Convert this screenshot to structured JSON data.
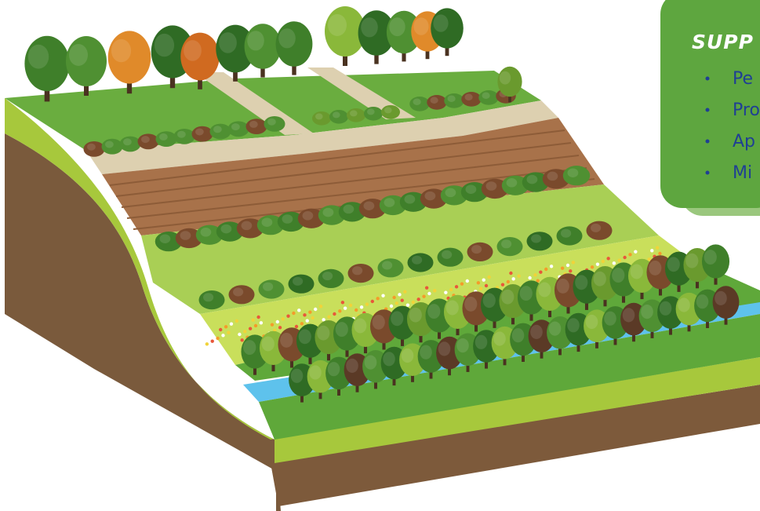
{
  "panel": {
    "title": "SUPP",
    "items": [
      "Pe",
      "Pro",
      "Ap",
      "Mi"
    ]
  },
  "colors": {
    "grass_top": "#6cad3f",
    "soil_side": "#7a5a3c",
    "soil_top_layer": "#a7c83c",
    "plowed_field": "#a8724a",
    "path": "#ddd0b0",
    "meadow": "#a9cf55",
    "flower_strip": "#c9df5b",
    "water": "#5ec2ec",
    "panel_green": "#5ea63f",
    "panel_text": "#1f3f94"
  },
  "icons": [
    "tree-icon",
    "shrub-icon",
    "flower-icon"
  ]
}
